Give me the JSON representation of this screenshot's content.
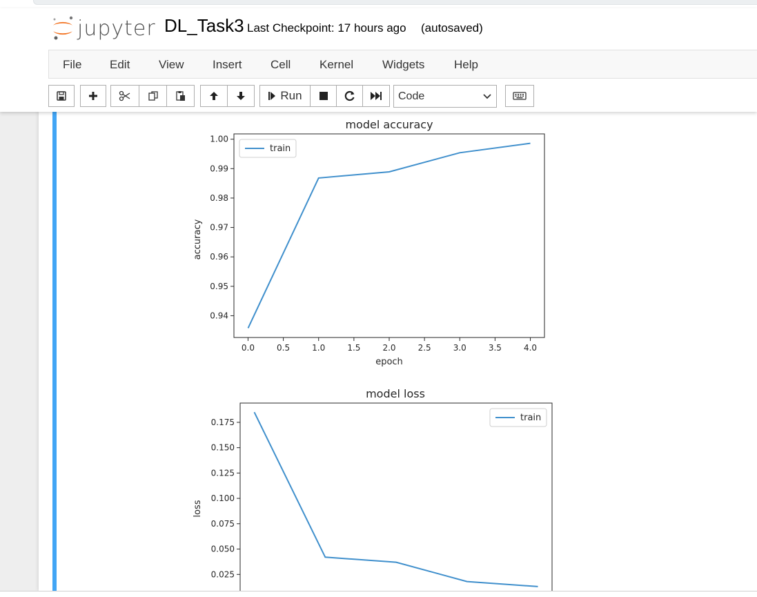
{
  "header": {
    "logo_text": "jupyter",
    "notebook_title": "DL_Task3",
    "checkpoint_text": "Last Checkpoint: 17 hours ago",
    "autosave_text": "(autosaved)"
  },
  "menu": {
    "items": [
      "File",
      "Edit",
      "View",
      "Insert",
      "Cell",
      "Kernel",
      "Widgets",
      "Help"
    ]
  },
  "toolbar": {
    "run_label": "Run",
    "cell_type_value": "Code",
    "icons": [
      "save-icon",
      "plus-icon",
      "cut-icon",
      "copy-icon",
      "paste-icon",
      "arrow-up-icon",
      "arrow-down-icon",
      "step-forward-icon",
      "stop-icon",
      "restart-icon",
      "fast-forward-icon",
      "keyboard-icon"
    ]
  },
  "colors": {
    "line": "#3f8fcc",
    "cell_indicator": "#42a5f5",
    "logo_orange": "#f37626"
  },
  "chart_data": [
    {
      "type": "line",
      "title": "model accuracy",
      "xlabel": "epoch",
      "ylabel": "accuracy",
      "x": [
        0,
        1,
        2,
        3,
        4
      ],
      "series": [
        {
          "name": "train",
          "values": [
            0.9358,
            0.9868,
            0.9889,
            0.9954,
            0.9986
          ]
        }
      ],
      "xlim": [
        -0.2,
        4.2
      ],
      "ylim": [
        0.9326,
        1.0018
      ],
      "xticks": [
        0,
        0.5,
        1,
        1.5,
        2,
        2.5,
        3,
        3.5,
        4
      ],
      "xtick_labels": [
        "0.0",
        "0.5",
        "1.0",
        "1.5",
        "2.0",
        "2.5",
        "3.0",
        "3.5",
        "4.0"
      ],
      "yticks": [
        0.94,
        0.95,
        0.96,
        0.97,
        0.98,
        0.99,
        1.0
      ],
      "ytick_labels": [
        "0.94",
        "0.95",
        "0.96",
        "0.97",
        "0.98",
        "0.99",
        "1.00"
      ],
      "legend_position": "upper-left",
      "grid": false
    },
    {
      "type": "line",
      "title": "model loss",
      "xlabel": "",
      "ylabel": "loss",
      "x": [
        0,
        1,
        2,
        3,
        4
      ],
      "series": [
        {
          "name": "train",
          "values": [
            0.185,
            0.042,
            0.037,
            0.018,
            0.013
          ]
        }
      ],
      "xlim": [
        -0.2,
        4.2
      ],
      "ylim": [
        0.0,
        0.194
      ],
      "yticks": [
        0.025,
        0.05,
        0.075,
        0.1,
        0.125,
        0.15,
        0.175
      ],
      "ytick_labels": [
        "0.025",
        "0.050",
        "0.075",
        "0.100",
        "0.125",
        "0.150",
        "0.175"
      ],
      "legend_position": "upper-right",
      "grid": false
    }
  ]
}
